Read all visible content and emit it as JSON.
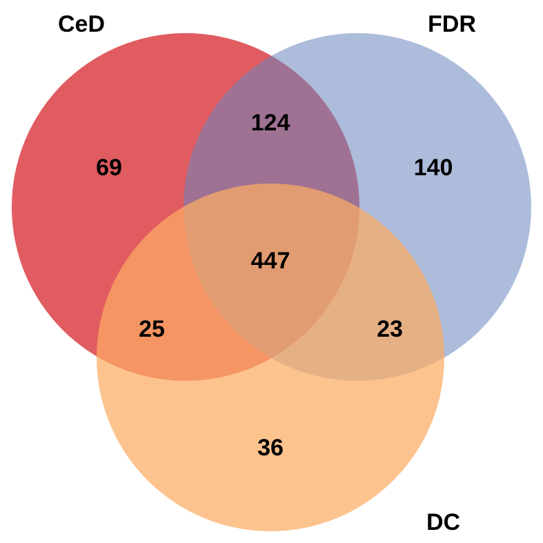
{
  "sets": [
    {
      "key": "ced",
      "label": "CeD",
      "color": "#d6252c"
    },
    {
      "key": "fdr",
      "label": "FDR",
      "color": "#6a85bd"
    },
    {
      "key": "dc",
      "label": "DC",
      "color": "#fcac64"
    }
  ],
  "regions": {
    "ced_only": "69",
    "fdr_only": "140",
    "dc_only": "36",
    "ced_fdr": "124",
    "ced_dc": "25",
    "fdr_dc": "23",
    "all": "447"
  }
}
